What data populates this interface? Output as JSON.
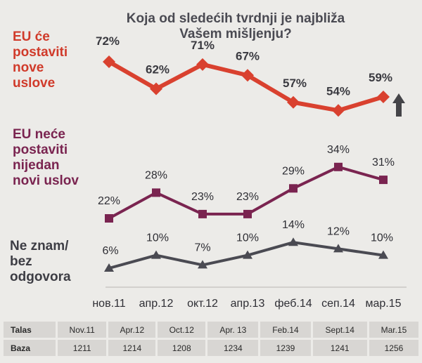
{
  "chart_data": {
    "type": "line",
    "title": [
      "Koja od sledećih tvrdnji je najbliža",
      "Vašem mišljenju?"
    ],
    "categories": [
      "нов.11",
      "апр.12",
      "окт.12",
      "апр.13",
      "феб.14",
      "сеп.14",
      "мар.15"
    ],
    "series": [
      {
        "name": [
          "EU će",
          "postaviti",
          "nove",
          "uslove"
        ],
        "values": [
          72,
          62,
          71,
          67,
          57,
          54,
          59
        ],
        "labels": [
          "72%",
          "62%",
          "71%",
          "67%",
          "57%",
          "54%",
          "59%"
        ],
        "color": "#d9412f",
        "marker": "diamond"
      },
      {
        "name": [
          "EU neće",
          "postaviti",
          "nijedan",
          "novi uslov"
        ],
        "values": [
          22,
          28,
          23,
          23,
          29,
          34,
          31
        ],
        "labels": [
          "22%",
          "28%",
          "23%",
          "23%",
          "29%",
          "34%",
          "31%"
        ],
        "color": "#7a2450",
        "marker": "square"
      },
      {
        "name": [
          "Ne znam/",
          "bez",
          "odgovora"
        ],
        "values": [
          6,
          10,
          7,
          10,
          14,
          12,
          10
        ],
        "labels": [
          "6%",
          "10%",
          "7%",
          "10%",
          "14%",
          "12%",
          "10%"
        ],
        "color": "#4a4a52",
        "marker": "triangle"
      }
    ],
    "trend_arrow": "up"
  },
  "table": {
    "rows": [
      {
        "label": "Talas",
        "cells": [
          "Nov.11",
          "Apr.12",
          "Oct.12",
          "Apr. 13",
          "Feb.14",
          "Sept.14",
          "Mar.15"
        ]
      },
      {
        "label": "Baza",
        "cells": [
          "1211",
          "1214",
          "1208",
          "1234",
          "1239",
          "1241",
          "1256"
        ]
      }
    ]
  }
}
